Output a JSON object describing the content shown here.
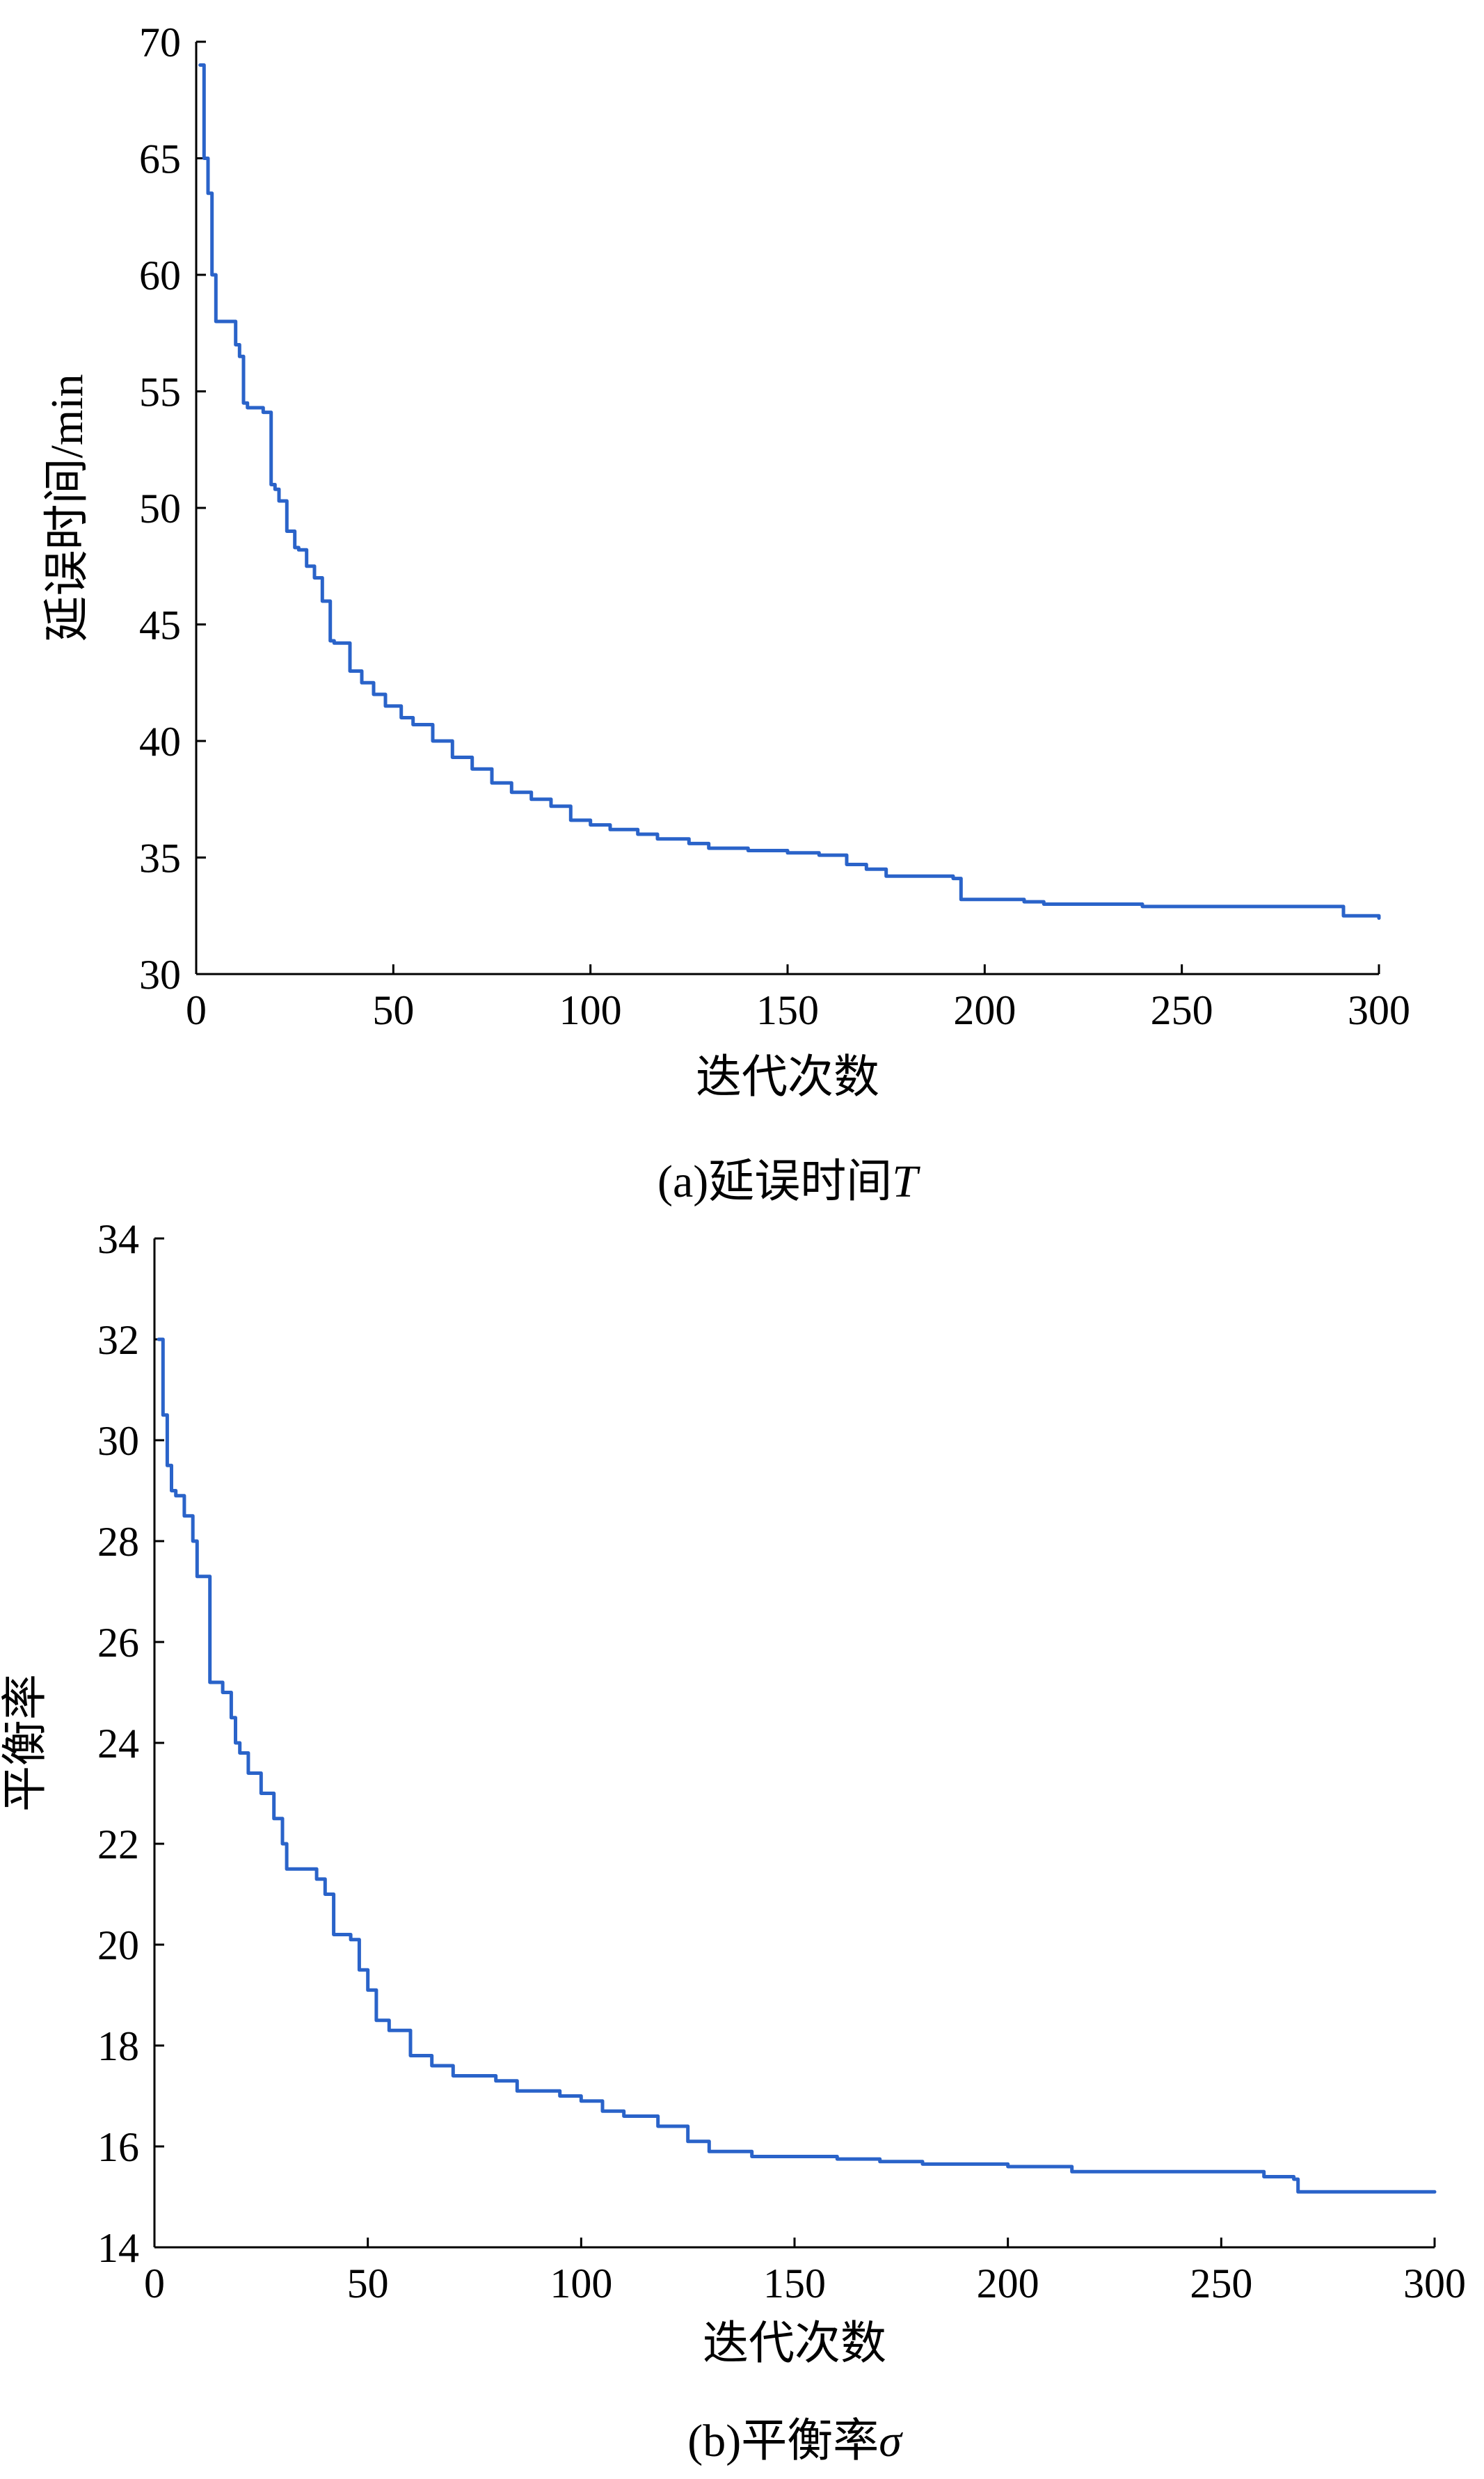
{
  "chart_data": [
    {
      "type": "line",
      "caption": "(a)延误时间T",
      "caption_prefix": "(a)延误时间",
      "caption_symbol": "T",
      "xlabel": "迭代次数",
      "ylabel": "延误时间/min",
      "xlim": [
        0,
        300
      ],
      "ylim": [
        30,
        70
      ],
      "xticks": [
        0,
        50,
        100,
        150,
        200,
        250,
        300
      ],
      "yticks": [
        30,
        35,
        40,
        45,
        50,
        55,
        60,
        65,
        70
      ],
      "grid": false,
      "line_color": "#2a63c9",
      "series": [
        {
          "x": [
            1,
            2,
            3,
            4,
            5,
            6,
            10,
            11,
            12,
            13,
            17,
            19,
            20,
            21,
            23,
            25,
            26,
            28,
            30,
            32,
            34,
            35,
            39,
            42,
            45,
            48,
            52,
            55,
            60,
            65,
            70,
            75,
            80,
            85,
            90,
            95,
            100,
            105,
            112,
            117,
            125,
            130,
            140,
            150,
            158,
            165,
            170,
            175,
            185,
            192,
            194,
            200,
            210,
            215,
            230,
            240,
            260,
            288,
            291,
            300
          ],
          "y": [
            69,
            65,
            63.5,
            60,
            58,
            58,
            57,
            56.5,
            54.5,
            54.3,
            54.1,
            51,
            50.8,
            50.3,
            49,
            48.3,
            48.2,
            47.5,
            47,
            46,
            44.3,
            44.2,
            43,
            42.5,
            42,
            41.5,
            41,
            40.7,
            40,
            39.3,
            38.8,
            38.2,
            37.8,
            37.5,
            37.2,
            36.6,
            36.4,
            36.2,
            36.0,
            35.8,
            35.6,
            35.4,
            35.3,
            35.2,
            35.1,
            34.7,
            34.5,
            34.2,
            34.2,
            34.1,
            33.2,
            33.2,
            33.1,
            33.0,
            33.0,
            32.9,
            32.9,
            32.9,
            32.5,
            32.4
          ]
        }
      ]
    },
    {
      "type": "line",
      "caption": "(b)平衡率σ",
      "caption_prefix": "(b)平衡率",
      "caption_symbol": "σ",
      "xlabel": "迭代次数",
      "ylabel": "平衡率",
      "xlim": [
        0,
        300
      ],
      "ylim": [
        14,
        34
      ],
      "xticks": [
        0,
        50,
        100,
        150,
        200,
        250,
        300
      ],
      "yticks": [
        14,
        16,
        18,
        20,
        22,
        24,
        26,
        28,
        30,
        32,
        34
      ],
      "grid": false,
      "line_color": "#2a63c9",
      "series": [
        {
          "x": [
            1,
            2,
            3,
            4,
            5,
            7,
            9,
            10,
            12,
            13,
            16,
            18,
            19,
            20,
            22,
            25,
            28,
            30,
            31,
            33,
            35,
            38,
            40,
            42,
            44,
            46,
            48,
            50,
            52,
            55,
            60,
            65,
            70,
            80,
            85,
            95,
            100,
            105,
            110,
            118,
            125,
            130,
            140,
            150,
            160,
            170,
            180,
            200,
            215,
            230,
            250,
            260,
            267,
            268,
            300
          ],
          "y": [
            32,
            30.5,
            29.5,
            29,
            28.9,
            28.5,
            28,
            27.3,
            27.3,
            25.2,
            25,
            24.5,
            24,
            23.8,
            23.4,
            23.0,
            22.5,
            22.0,
            21.5,
            21.5,
            21.5,
            21.3,
            21.0,
            20.2,
            20.2,
            20.1,
            19.5,
            19.1,
            18.5,
            18.3,
            17.8,
            17.6,
            17.4,
            17.3,
            17.1,
            17.0,
            16.9,
            16.7,
            16.6,
            16.4,
            16.1,
            15.9,
            15.8,
            15.8,
            15.75,
            15.7,
            15.65,
            15.6,
            15.5,
            15.5,
            15.5,
            15.4,
            15.35,
            15.1,
            15.1
          ]
        }
      ]
    }
  ]
}
